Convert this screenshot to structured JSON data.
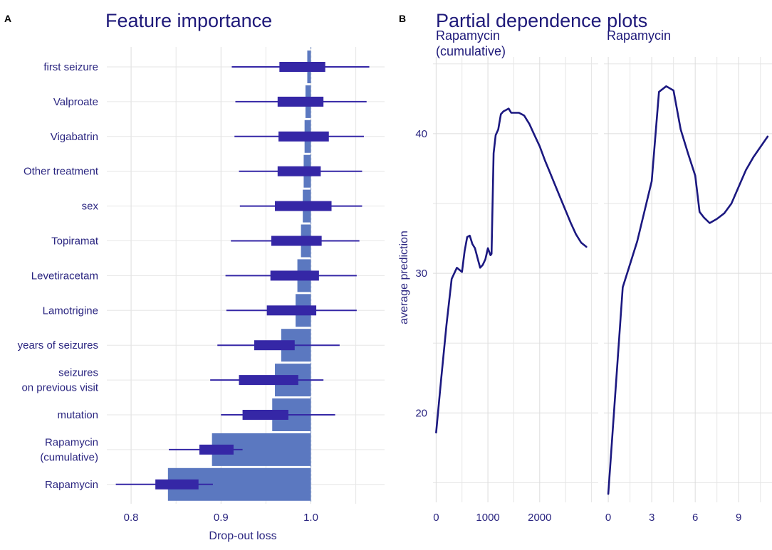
{
  "colors": {
    "title": "#1f1a7a",
    "text": "#2a2580",
    "bar": "#5b78c0",
    "box": "#3527a6",
    "line": "#1b1880",
    "grid": "#e6e6e6",
    "gridMajor": "#dcdcdc",
    "refline": "#8aa0c8"
  },
  "chart_data": [
    {
      "type": "bar",
      "panel_letter": "A",
      "title": "Feature importance",
      "xlabel": "Drop-out loss",
      "ylabel": "",
      "xlim": [
        0.773,
        1.082
      ],
      "baseline": 1.0,
      "x_ticks": [
        0.8,
        0.9,
        1.0
      ],
      "x_tick_labels": [
        "0.8",
        "0.9",
        "1.0"
      ],
      "categories": [
        {
          "label": [
            "first seizure"
          ],
          "bar": 0.996,
          "whisker": [
            0.912,
            1.065
          ],
          "box": [
            0.965,
            1.016
          ]
        },
        {
          "label": [
            "Valproate"
          ],
          "bar": 0.994,
          "whisker": [
            0.916,
            1.062
          ],
          "box": [
            0.963,
            1.014
          ]
        },
        {
          "label": [
            "Vigabatrin"
          ],
          "bar": 0.993,
          "whisker": [
            0.915,
            1.059
          ],
          "box": [
            0.964,
            1.02
          ]
        },
        {
          "label": [
            "Other treatment"
          ],
          "bar": 0.992,
          "whisker": [
            0.92,
            1.057
          ],
          "box": [
            0.963,
            1.011
          ]
        },
        {
          "label": [
            "sex"
          ],
          "bar": 0.991,
          "whisker": [
            0.921,
            1.057
          ],
          "box": [
            0.96,
            1.023
          ]
        },
        {
          "label": [
            "Topiramat"
          ],
          "bar": 0.989,
          "whisker": [
            0.911,
            1.054
          ],
          "box": [
            0.956,
            1.012
          ]
        },
        {
          "label": [
            "Levetiracetam"
          ],
          "bar": 0.985,
          "whisker": [
            0.905,
            1.051
          ],
          "box": [
            0.955,
            1.009
          ]
        },
        {
          "label": [
            "Lamotrigine"
          ],
          "bar": 0.983,
          "whisker": [
            0.906,
            1.051
          ],
          "box": [
            0.951,
            1.006
          ]
        },
        {
          "label": [
            "years of seizures"
          ],
          "bar": 0.967,
          "whisker": [
            0.896,
            1.032
          ],
          "box": [
            0.937,
            0.982
          ]
        },
        {
          "label": [
            "seizures",
            "on previous visit"
          ],
          "bar": 0.96,
          "whisker": [
            0.888,
            1.014
          ],
          "box": [
            0.92,
            0.986
          ]
        },
        {
          "label": [
            "mutation"
          ],
          "bar": 0.957,
          "whisker": [
            0.9,
            1.027
          ],
          "box": [
            0.924,
            0.975
          ]
        },
        {
          "label": [
            "Rapamycin",
            "(cumulative)"
          ],
          "bar": 0.89,
          "whisker": [
            0.842,
            0.924
          ],
          "box": [
            0.876,
            0.914
          ]
        },
        {
          "label": [
            "Rapamycin"
          ],
          "bar": 0.841,
          "whisker": [
            0.783,
            0.891
          ],
          "box": [
            0.827,
            0.875
          ]
        }
      ]
    },
    {
      "type": "line",
      "panel_letter": "B",
      "title": "Partial dependence plots",
      "ylabel": "average prediction",
      "ylim": [
        13.6,
        45.5
      ],
      "y_ticks": [
        20,
        30,
        40
      ],
      "y_tick_labels": [
        "20",
        "30",
        "40"
      ],
      "facets": [
        {
          "strip_label": [
            "Rapamycin",
            "(cumulative)"
          ],
          "xlim": [
            -60,
            3130
          ],
          "x_ticks": [
            0,
            1000,
            2000
          ],
          "x_tick_labels": [
            "0",
            "1000",
            "2000"
          ],
          "x": [
            0,
            100,
            200,
            300,
            400,
            500,
            550,
            600,
            650,
            700,
            750,
            800,
            850,
            900,
            950,
            1000,
            1050,
            1070,
            1110,
            1150,
            1200,
            1250,
            1300,
            1350,
            1400,
            1450,
            1500,
            1600,
            1700,
            1800,
            1900,
            2000,
            2100,
            2200,
            2300,
            2400,
            2500,
            2600,
            2700,
            2800,
            2900
          ],
          "y": [
            18.6,
            22.5,
            26.3,
            29.6,
            30.4,
            30.1,
            31.6,
            32.6,
            32.7,
            32.1,
            31.8,
            31.1,
            30.4,
            30.6,
            31.0,
            31.8,
            31.3,
            31.4,
            38.6,
            39.9,
            40.3,
            41.4,
            41.6,
            41.7,
            41.8,
            41.5,
            41.5,
            41.5,
            41.3,
            40.7,
            39.9,
            39.1,
            38.1,
            37.2,
            36.3,
            35.4,
            34.5,
            33.6,
            32.8,
            32.2,
            31.9
          ]
        },
        {
          "strip_label": [
            "Rapamycin"
          ],
          "xlim": [
            -0.3,
            11.3
          ],
          "x_ticks": [
            0,
            3,
            6,
            9
          ],
          "x_tick_labels": [
            "0",
            "3",
            "6",
            "9"
          ],
          "x": [
            0,
            1,
            2,
            3,
            3.5,
            4,
            4.5,
            5,
            5.5,
            6,
            6.3,
            6.6,
            7,
            7.5,
            8,
            8.5,
            9,
            9.5,
            10,
            11
          ],
          "y": [
            14.2,
            29.0,
            32.3,
            36.6,
            43.0,
            43.4,
            43.1,
            40.3,
            38.6,
            37.0,
            34.4,
            34.0,
            33.6,
            33.9,
            34.3,
            35.0,
            36.2,
            37.4,
            38.3,
            39.8
          ]
        }
      ]
    }
  ]
}
